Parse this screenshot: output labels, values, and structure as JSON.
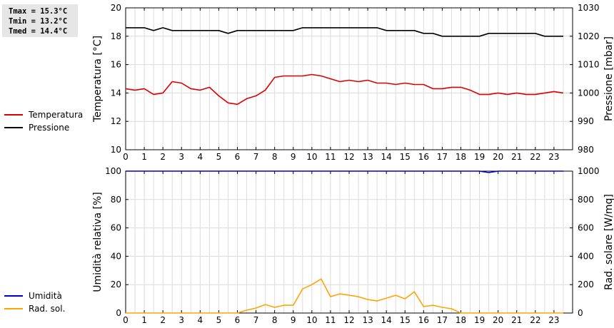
{
  "stats": {
    "tmax": "Tmax = 15.3°C",
    "tmin": "Tmin = 13.2°C",
    "tmed": "Tmed = 14.4°C"
  },
  "legend_top": [
    {
      "label": "Temperatura",
      "color": "#dd0000"
    },
    {
      "label": "Pressione",
      "color": "#000000"
    }
  ],
  "legend_bottom": [
    {
      "label": "Umidità",
      "color": "#0000cc"
    },
    {
      "label": "Rad. sol.",
      "color": "#ffa500"
    }
  ],
  "chart_data": [
    {
      "type": "line",
      "xlabel": "",
      "x_ticks": [
        "0",
        "1",
        "2",
        "3",
        "4",
        "5",
        "6",
        "7",
        "8",
        "9",
        "10",
        "11",
        "12",
        "13",
        "14",
        "15",
        "16",
        "17",
        "18",
        "19",
        "20",
        "21",
        "22",
        "23"
      ],
      "xlim": [
        0,
        24
      ],
      "ylabel_left": "Temperatura [°C]",
      "ylim_left": [
        10,
        20
      ],
      "yticks_left": [
        10,
        12,
        14,
        16,
        18,
        20
      ],
      "ylabel_right": "Pressione [mbar]",
      "ylim_right": [
        980,
        1030
      ],
      "yticks_right": [
        980,
        990,
        1000,
        1010,
        1020,
        1030
      ],
      "grid": true,
      "series": [
        {
          "name": "Temperatura",
          "axis": "left",
          "color": "#dd0000",
          "x": [
            0,
            0.5,
            1,
            1.5,
            2,
            2.5,
            3,
            3.5,
            4,
            4.5,
            5,
            5.5,
            6,
            6.5,
            7,
            7.5,
            8,
            8.5,
            9,
            9.5,
            10,
            10.5,
            11,
            11.5,
            12,
            12.5,
            13,
            13.5,
            14,
            14.5,
            15,
            15.5,
            16,
            16.5,
            17,
            17.5,
            18,
            18.5,
            19,
            19.5,
            20,
            20.5,
            21,
            21.5,
            22,
            22.5,
            23,
            23.5
          ],
          "values": [
            14.3,
            14.2,
            14.3,
            13.9,
            14.0,
            14.8,
            14.7,
            14.3,
            14.2,
            14.4,
            13.8,
            13.3,
            13.2,
            13.6,
            13.8,
            14.2,
            15.1,
            15.2,
            15.2,
            15.2,
            15.3,
            15.2,
            15.0,
            14.8,
            14.9,
            14.8,
            14.9,
            14.7,
            14.7,
            14.6,
            14.7,
            14.6,
            14.6,
            14.3,
            14.3,
            14.4,
            14.4,
            14.2,
            13.9,
            13.9,
            14.0,
            13.9,
            14.0,
            13.9,
            13.9,
            14.0,
            14.1,
            14.0
          ]
        },
        {
          "name": "Pressione",
          "axis": "right",
          "color": "#000000",
          "x": [
            0,
            0.5,
            1,
            1.5,
            2,
            2.5,
            3,
            3.5,
            4,
            4.5,
            5,
            5.5,
            6,
            6.5,
            7,
            7.5,
            8,
            8.5,
            9,
            9.5,
            10,
            10.5,
            11,
            11.5,
            12,
            12.5,
            13,
            13.5,
            14,
            14.5,
            15,
            15.5,
            16,
            16.5,
            17,
            17.5,
            18,
            18.5,
            19,
            19.5,
            20,
            20.5,
            21,
            21.5,
            22,
            22.5,
            23,
            23.5
          ],
          "values": [
            1023,
            1023,
            1023,
            1022,
            1023,
            1022,
            1022,
            1022,
            1022,
            1022,
            1022,
            1021,
            1022,
            1022,
            1022,
            1022,
            1022,
            1022,
            1022,
            1023,
            1023,
            1023,
            1023,
            1023,
            1023,
            1023,
            1023,
            1023,
            1022,
            1022,
            1022,
            1022,
            1021,
            1021,
            1020,
            1020,
            1020,
            1020,
            1020,
            1021,
            1021,
            1021,
            1021,
            1021,
            1021,
            1020,
            1020,
            1020
          ]
        }
      ]
    },
    {
      "type": "line",
      "xlabel": "",
      "x_ticks": [
        "0",
        "1",
        "2",
        "3",
        "4",
        "5",
        "6",
        "7",
        "8",
        "9",
        "10",
        "11",
        "12",
        "13",
        "14",
        "15",
        "16",
        "17",
        "18",
        "19",
        "20",
        "21",
        "22",
        "23"
      ],
      "xlim": [
        0,
        24
      ],
      "ylabel_left": "Umidità relativa [%]",
      "ylim_left": [
        0,
        100
      ],
      "yticks_left": [
        0,
        20,
        40,
        60,
        80,
        100
      ],
      "ylabel_right": "Rad. solare [W/mq]",
      "ylim_right": [
        0,
        1000
      ],
      "yticks_right": [
        0,
        200,
        400,
        600,
        800,
        1000
      ],
      "grid": true,
      "series": [
        {
          "name": "Umidità",
          "axis": "left",
          "color": "#0000cc",
          "x": [
            0,
            1,
            2,
            3,
            4,
            5,
            6,
            7,
            8,
            9,
            10,
            11,
            12,
            13,
            14,
            15,
            16,
            17,
            18,
            19,
            19.5,
            20,
            21,
            22,
            23,
            23.5
          ],
          "values": [
            100,
            100,
            100,
            100,
            100,
            100,
            100,
            100,
            100,
            100,
            100,
            100,
            100,
            100,
            100,
            100,
            100,
            100,
            100,
            100,
            99,
            100,
            100,
            100,
            100,
            100
          ]
        },
        {
          "name": "Rad. sol.",
          "axis": "right",
          "color": "#ffa500",
          "x": [
            0,
            0.5,
            1,
            1.5,
            2,
            2.5,
            3,
            3.5,
            4,
            4.5,
            5,
            5.5,
            6,
            6.5,
            7,
            7.5,
            8,
            8.5,
            9,
            9.5,
            10,
            10.5,
            11,
            11.5,
            12,
            12.5,
            13,
            13.5,
            14,
            14.5,
            15,
            15.5,
            16,
            16.5,
            17,
            17.5,
            18,
            18.5,
            19,
            19.5,
            20,
            20.5,
            21,
            21.5,
            22,
            22.5,
            23,
            23.5
          ],
          "values": [
            0,
            0,
            0,
            0,
            0,
            0,
            0,
            0,
            0,
            0,
            0,
            0,
            0,
            20,
            35,
            60,
            40,
            55,
            55,
            170,
            200,
            240,
            115,
            135,
            125,
            115,
            95,
            85,
            105,
            125,
            100,
            150,
            45,
            55,
            40,
            30,
            0,
            0,
            0,
            0,
            0,
            0,
            0,
            0,
            0,
            0,
            0,
            0
          ]
        }
      ]
    }
  ]
}
